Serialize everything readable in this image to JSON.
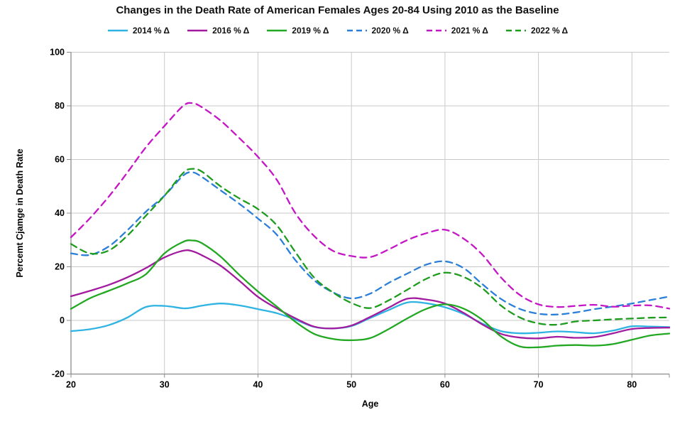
{
  "chart_data": {
    "type": "line",
    "title": "Changes in the Death Rate of American Females Ages 20-84 Using 2010 as the Baseline",
    "xlabel": "Age",
    "ylabel": "Percemt Cjamge in Death Rate",
    "xlim": [
      20,
      84
    ],
    "ylim": [
      -20,
      100
    ],
    "xticks": [
      20,
      30,
      40,
      50,
      60,
      70,
      80
    ],
    "yticks": [
      -20,
      0,
      20,
      40,
      60,
      80,
      100
    ],
    "grid": true,
    "legend_position": "top",
    "x": [
      20,
      22,
      24,
      26,
      28,
      30,
      32,
      33,
      34,
      36,
      38,
      40,
      42,
      44,
      46,
      48,
      50,
      52,
      54,
      56,
      58,
      60,
      62,
      64,
      66,
      68,
      70,
      72,
      74,
      76,
      78,
      80,
      82,
      84
    ],
    "series": [
      {
        "name": "2014 % Δ",
        "style": "solid",
        "color": "#2FB3E3",
        "values": [
          -4.0,
          -3.3,
          -1.8,
          1.0,
          5.0,
          5.4,
          4.5,
          4.8,
          5.5,
          6.3,
          5.6,
          4.2,
          2.7,
          0.3,
          -2.4,
          -3.0,
          -2.1,
          0.9,
          3.9,
          6.7,
          6.4,
          4.9,
          2.4,
          -1.2,
          -4.0,
          -4.8,
          -4.6,
          -4.1,
          -4.4,
          -4.8,
          -3.8,
          -2.2,
          -2.3,
          -2.5
        ]
      },
      {
        "name": "2016 % Δ",
        "style": "solid",
        "color": "#A21A9E",
        "values": [
          9.0,
          11.0,
          13.2,
          16.0,
          19.5,
          23.5,
          26.0,
          25.8,
          24.3,
          20.4,
          14.8,
          8.8,
          4.5,
          0.8,
          -2.3,
          -3.0,
          -1.9,
          1.3,
          4.8,
          8.1,
          7.8,
          6.3,
          2.8,
          -1.5,
          -5.0,
          -6.4,
          -6.7,
          -6.1,
          -6.5,
          -6.2,
          -4.8,
          -3.2,
          -2.8,
          -2.7
        ]
      },
      {
        "name": "2019 % Δ",
        "style": "solid",
        "color": "#22A822",
        "values": [
          4.3,
          8.2,
          11.0,
          13.8,
          17.2,
          25.0,
          29.3,
          29.8,
          28.8,
          23.8,
          17.0,
          10.8,
          5.2,
          -0.5,
          -5.0,
          -6.9,
          -7.4,
          -6.6,
          -3.2,
          0.8,
          4.3,
          6.0,
          4.4,
          0.2,
          -6.0,
          -9.7,
          -10.0,
          -9.4,
          -9.2,
          -9.4,
          -8.8,
          -7.2,
          -5.6,
          -4.9
        ]
      },
      {
        "name": "2020 % Δ",
        "style": "dashed",
        "color": "#2B7FD9",
        "values": [
          25.0,
          24.4,
          27.5,
          33.5,
          40.5,
          46.5,
          54.0,
          55.2,
          53.5,
          48.5,
          43.5,
          38.0,
          32.0,
          22.5,
          15.0,
          10.5,
          8.2,
          10.0,
          14.0,
          17.5,
          20.8,
          22.0,
          19.5,
          13.5,
          8.0,
          4.3,
          2.5,
          2.2,
          3.0,
          4.2,
          5.2,
          6.3,
          7.6,
          8.9
        ]
      },
      {
        "name": "2021 % Δ",
        "style": "dashed",
        "color": "#C516C5",
        "values": [
          31.0,
          38.0,
          46.0,
          55.0,
          64.5,
          72.5,
          80.0,
          81.0,
          79.5,
          74.5,
          68.0,
          61.0,
          52.5,
          40.0,
          31.5,
          26.0,
          24.0,
          23.6,
          26.5,
          30.0,
          32.5,
          33.8,
          30.5,
          24.5,
          16.0,
          9.5,
          6.0,
          5.0,
          5.4,
          5.8,
          5.1,
          5.5,
          5.6,
          4.4
        ]
      },
      {
        "name": "2022 % Δ",
        "style": "dashed",
        "color": "#1E9C1E",
        "values": [
          28.5,
          25.0,
          26.0,
          31.5,
          39.0,
          46.5,
          55.0,
          56.5,
          55.5,
          50.0,
          45.5,
          41.5,
          35.5,
          25.5,
          16.0,
          10.5,
          6.5,
          4.6,
          7.5,
          11.5,
          15.5,
          17.8,
          16.2,
          12.0,
          5.5,
          1.1,
          -1.1,
          -1.6,
          -0.4,
          0.0,
          0.4,
          0.7,
          1.0,
          1.1
        ]
      }
    ],
    "colors": {
      "gridline": "#C9C9C9",
      "axis": "#8C8C8C",
      "text": "#000000"
    }
  }
}
